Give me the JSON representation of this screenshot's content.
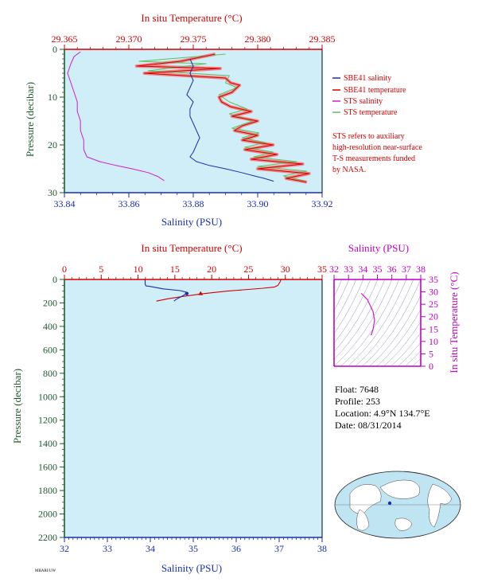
{
  "colors": {
    "plot_bg": "#cfeef8",
    "temperature": "#d40000",
    "salinity": "#1a2fb0",
    "pressure": "#1f5a2e",
    "sts_salinity": "#d21ad2",
    "sts_temperature": "#5fbf5f",
    "sbe_temperature_band": "#f08a8a",
    "ts_axis": "#c000c0"
  },
  "chart_data": [
    {
      "id": "near-surface",
      "type": "line",
      "top_axis": {
        "label": "In situ Temperature (°C)",
        "range": [
          29.365,
          29.385
        ],
        "ticks": [
          29.365,
          29.37,
          29.375,
          29.38,
          29.385
        ]
      },
      "bottom_axis": {
        "label": "Salinity (PSU)",
        "range": [
          33.84,
          33.92
        ],
        "ticks": [
          33.84,
          33.86,
          33.88,
          33.9,
          33.92
        ]
      },
      "left_axis": {
        "label": "Pressure (decibar)",
        "range": [
          0,
          30
        ],
        "ticks": [
          0,
          10,
          20,
          30
        ]
      },
      "legend": {
        "placement": "right",
        "entries": [
          {
            "name": "SBE41 salinity",
            "color": "#1a2fb0"
          },
          {
            "name": "SBE41 temperature",
            "color": "#d40000"
          },
          {
            "name": "STS salinity",
            "color": "#d21ad2"
          },
          {
            "name": "STS temperature",
            "color": "#5fbf5f"
          }
        ]
      },
      "note": [
        "STS refers to auxiliary",
        "high-resolution near-surface",
        "T-S measurements funded",
        "by NASA."
      ],
      "series": [
        {
          "name": "SBE41 salinity",
          "axis": "salinity",
          "points": [
            [
              33.879,
              2.0
            ],
            [
              33.88,
              3.5
            ],
            [
              33.879,
              5.0
            ],
            [
              33.88,
              6.5
            ],
            [
              33.879,
              8.0
            ],
            [
              33.878,
              9.5
            ],
            [
              33.88,
              11.0
            ],
            [
              33.879,
              12.5
            ],
            [
              33.879,
              14.0
            ],
            [
              33.88,
              15.5
            ],
            [
              33.881,
              17.0
            ],
            [
              33.882,
              18.5
            ],
            [
              33.881,
              20.0
            ],
            [
              33.88,
              21.5
            ],
            [
              33.879,
              22.5
            ],
            [
              33.881,
              23.5
            ],
            [
              33.885,
              24.3
            ],
            [
              33.89,
              25.0
            ],
            [
              33.895,
              25.8
            ],
            [
              33.899,
              26.5
            ],
            [
              33.902,
              27.0
            ],
            [
              33.905,
              27.6
            ]
          ]
        },
        {
          "name": "SBE41 temperature",
          "axis": "temperature",
          "points": [
            [
              29.3767,
              1.0
            ],
            [
              29.374,
              2.5
            ],
            [
              29.3706,
              3.5
            ],
            [
              29.3771,
              4.0
            ],
            [
              29.3712,
              5.0
            ],
            [
              29.3775,
              6.0
            ],
            [
              29.3779,
              7.0
            ],
            [
              29.3786,
              7.5
            ],
            [
              29.378,
              9.0
            ],
            [
              29.377,
              10.0
            ],
            [
              29.3772,
              11.0
            ],
            [
              29.3779,
              12.0
            ],
            [
              29.3795,
              13.0
            ],
            [
              29.378,
              14.0
            ],
            [
              29.38,
              15.0
            ],
            [
              29.3788,
              16.0
            ],
            [
              29.3782,
              17.0
            ],
            [
              29.38,
              18.0
            ],
            [
              29.3788,
              19.0
            ],
            [
              29.3812,
              20.0
            ],
            [
              29.379,
              21.0
            ],
            [
              29.3815,
              22.0
            ],
            [
              29.3795,
              23.0
            ],
            [
              29.3835,
              24.0
            ],
            [
              29.38,
              25.0
            ],
            [
              29.384,
              26.0
            ],
            [
              29.3822,
              27.0
            ],
            [
              29.3838,
              27.8
            ]
          ]
        },
        {
          "name": "STS salinity",
          "axis": "salinity",
          "points": [
            [
              33.845,
              0.5
            ],
            [
              33.843,
              1.5
            ],
            [
              33.842,
              3.0
            ],
            [
              33.841,
              5.0
            ],
            [
              33.842,
              7.0
            ],
            [
              33.843,
              9.0
            ],
            [
              33.844,
              11.0
            ],
            [
              33.844,
              13.0
            ],
            [
              33.845,
              15.0
            ],
            [
              33.845,
              17.0
            ],
            [
              33.846,
              19.0
            ],
            [
              33.846,
              21.0
            ],
            [
              33.847,
              22.5
            ],
            [
              33.851,
              23.5
            ],
            [
              33.856,
              24.3
            ],
            [
              33.861,
              25.0
            ],
            [
              33.866,
              25.8
            ],
            [
              33.869,
              26.6
            ],
            [
              33.871,
              27.5
            ]
          ]
        },
        {
          "name": "STS temperature",
          "axis": "temperature",
          "points": [
            [
              29.3775,
              1.0
            ],
            [
              29.3708,
              2.5
            ],
            [
              29.376,
              3.0
            ],
            [
              29.3715,
              4.5
            ],
            [
              29.3778,
              5.5
            ],
            [
              29.3775,
              7.0
            ],
            [
              29.3784,
              8.0
            ],
            [
              29.377,
              9.5
            ],
            [
              29.3778,
              11.0
            ],
            [
              29.3792,
              12.5
            ],
            [
              29.3778,
              13.5
            ],
            [
              29.3796,
              15.0
            ],
            [
              29.378,
              16.5
            ],
            [
              29.3801,
              17.5
            ],
            [
              29.3788,
              18.5
            ],
            [
              29.3806,
              19.5
            ],
            [
              29.379,
              20.5
            ],
            [
              29.3812,
              21.5
            ],
            [
              29.3797,
              22.5
            ],
            [
              29.383,
              23.5
            ],
            [
              29.38,
              24.5
            ],
            [
              29.3838,
              25.5
            ],
            [
              29.382,
              26.5
            ],
            [
              29.3836,
              27.5
            ]
          ]
        }
      ]
    },
    {
      "id": "full-profile",
      "type": "line",
      "top_axis": {
        "label": "In situ Temperature (°C)",
        "range": [
          0,
          35
        ],
        "ticks": [
          0,
          5,
          10,
          15,
          20,
          25,
          30,
          35
        ]
      },
      "bottom_axis": {
        "label": "Salinity (PSU)",
        "range": [
          32,
          38
        ],
        "ticks": [
          32,
          33,
          34,
          35,
          36,
          37,
          38
        ]
      },
      "left_axis": {
        "label": "Pressure (decibar)",
        "range": [
          0,
          2200
        ],
        "ticks": [
          0,
          200,
          400,
          600,
          800,
          1000,
          1200,
          1400,
          1600,
          1800,
          2000,
          2200
        ]
      },
      "series": [
        {
          "name": "temperature",
          "axis": "temperature",
          "points": [
            [
              29.4,
              0
            ],
            [
              29.3,
              20
            ],
            [
              29.0,
              50
            ],
            [
              28.5,
              65
            ],
            [
              27.0,
              75
            ],
            [
              25.0,
              85
            ],
            [
              22.0,
              100
            ],
            [
              19.0,
              120
            ],
            [
              16.0,
              145
            ],
            [
              14.0,
              165
            ],
            [
              12.5,
              185
            ]
          ]
        },
        {
          "name": "salinity",
          "axis": "salinity",
          "points": [
            [
              33.88,
              0
            ],
            [
              33.88,
              40
            ],
            [
              33.9,
              55
            ],
            [
              34.0,
              60
            ],
            [
              34.3,
              80
            ],
            [
              34.7,
              95
            ],
            [
              34.85,
              110
            ],
            [
              34.8,
              130
            ],
            [
              34.7,
              150
            ],
            [
              34.6,
              170
            ],
            [
              34.55,
              185
            ]
          ]
        }
      ],
      "markers": [
        {
          "series": "temperature",
          "x": 18.5,
          "pressure": 120
        },
        {
          "series": "salinity",
          "x": 34.85,
          "pressure": 120
        }
      ]
    },
    {
      "id": "ts-diagram",
      "type": "line",
      "top_axis": {
        "label": "Salinity (PSU)",
        "range": [
          32,
          38
        ],
        "ticks": [
          32,
          33,
          34,
          35,
          36,
          37,
          38
        ]
      },
      "right_axis": {
        "label": "In situ Temperature (°C)",
        "range": [
          0,
          35
        ],
        "ticks": [
          0,
          5,
          10,
          15,
          20,
          25,
          30,
          35
        ]
      },
      "series": [
        {
          "name": "T-S",
          "points": [
            [
              33.88,
              29.4
            ],
            [
              34.3,
              27.0
            ],
            [
              34.7,
              22.0
            ],
            [
              34.8,
              18.5
            ],
            [
              34.7,
              15.0
            ],
            [
              34.6,
              13.0
            ],
            [
              34.55,
              12.5
            ]
          ]
        }
      ]
    }
  ],
  "float_info": {
    "float": "Float:  7648",
    "profile": "Profile:  253",
    "location": "Location:  4.9°N  134.7°E",
    "date": "Date:  08/31/2014"
  },
  "footer": "MBARI/UW"
}
